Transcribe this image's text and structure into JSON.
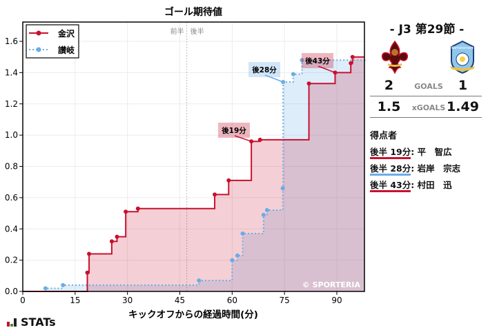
{
  "chart_data": {
    "type": "line",
    "subtype": "step",
    "title": "ゴール期待値",
    "xlabel": "キックオフからの経過時間(分)",
    "ylabel": "",
    "xlim": [
      0,
      98
    ],
    "ylim": [
      0,
      1.72
    ],
    "xticks": [
      0,
      15,
      30,
      45,
      60,
      75,
      90
    ],
    "yticks": [
      0.0,
      0.2,
      0.4,
      0.6,
      0.8,
      1.0,
      1.2,
      1.4,
      1.6
    ],
    "grid": true,
    "legend_position": "upper left",
    "half_line": {
      "x": 47,
      "labels": [
        "前半",
        "後半"
      ]
    },
    "series": [
      {
        "name": "金沢",
        "color": "#c8102e",
        "style": "solid",
        "x": [
          0,
          18.5,
          19,
          25.5,
          27,
          29.5,
          33,
          55,
          59,
          65.5,
          68,
          82,
          89.5,
          94,
          94.5,
          98
        ],
        "y": [
          0,
          0.12,
          0.24,
          0.32,
          0.35,
          0.51,
          0.53,
          0.62,
          0.71,
          0.96,
          0.97,
          1.33,
          1.4,
          1.46,
          1.5,
          1.5
        ]
      },
      {
        "name": "讃岐",
        "color": "#6aace6",
        "style": "dotted",
        "x": [
          0,
          6.5,
          11.5,
          50.5,
          60,
          61.5,
          63,
          69,
          70,
          74.5,
          74.6,
          77.5,
          80,
          98
        ],
        "y": [
          0,
          0.02,
          0.04,
          0.07,
          0.2,
          0.23,
          0.37,
          0.49,
          0.52,
          0.66,
          1.34,
          1.39,
          1.48,
          1.49
        ]
      }
    ],
    "annotations": [
      {
        "text": "後19分",
        "x": 65.5,
        "y": 0.96,
        "team": "金沢"
      },
      {
        "text": "後28分",
        "x": 74.6,
        "y": 1.34,
        "team": "讃岐"
      },
      {
        "text": "後43分",
        "x": 89.5,
        "y": 1.4,
        "team": "金沢"
      }
    ],
    "watermark": "© SPORTERIA"
  },
  "side": {
    "round": "- J3 第29節 -",
    "home_logo": "zweigen-kanazawa-crest",
    "away_logo": "kamatamare-sanuki-crest",
    "goals": {
      "home": "2",
      "label": "GOALS",
      "away": "1"
    },
    "xgoals": {
      "home": "1.5",
      "label": "xGOALS",
      "away": "1.49"
    },
    "scorers_title": "得点者",
    "scorers": [
      {
        "time": "後半 19分",
        "name": ": 平　智広",
        "color": "#c8102e"
      },
      {
        "time": "後半 28分",
        "name": ": 岩岸　宗志",
        "color": "#6aace6"
      },
      {
        "time": "後半 43分",
        "name": ": 村田　迅",
        "color": "#c8102e"
      }
    ]
  },
  "brand": {
    "name": "STATs"
  }
}
